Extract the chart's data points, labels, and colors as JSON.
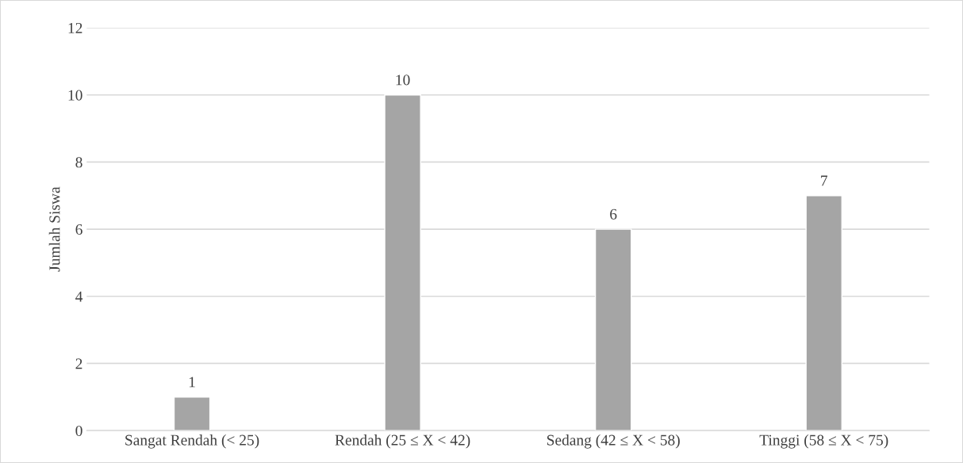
{
  "chart_data": {
    "type": "bar",
    "ylabel": "Jumlah Siswa",
    "categories": [
      "Sangat Rendah (< 25)",
      "Rendah (25 ≤ X < 42)",
      "Sedang (42 ≤ X < 58)",
      "Tinggi (58 ≤ X < 75)"
    ],
    "values": [
      1,
      10,
      6,
      7
    ],
    "color": "#a5a5a5",
    "ylim": [
      0,
      12
    ],
    "yticks": [
      0,
      2,
      4,
      6,
      8,
      10,
      12
    ],
    "grid": "y",
    "data_labels": true
  }
}
